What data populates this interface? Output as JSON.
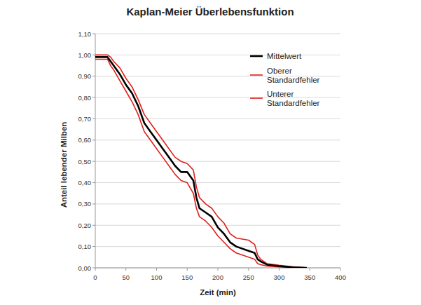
{
  "chart_data": {
    "type": "line",
    "title": "Kaplan-Meier Überlebensfunktion",
    "x_label": "Zeit (min)",
    "y_label": "Anteil lebender Milben",
    "x": [
      0,
      20,
      25,
      30,
      40,
      50,
      60,
      70,
      80,
      90,
      100,
      110,
      120,
      130,
      140,
      150,
      160,
      165,
      170,
      180,
      190,
      200,
      210,
      220,
      230,
      250,
      260,
      265,
      270,
      280,
      300,
      320,
      345
    ],
    "series": [
      {
        "name": "Mittelwert",
        "color": "#000000",
        "values": [
          0.99,
          0.99,
          0.97,
          0.95,
          0.91,
          0.86,
          0.82,
          0.76,
          0.68,
          0.64,
          0.6,
          0.56,
          0.52,
          0.48,
          0.45,
          0.45,
          0.41,
          0.33,
          0.28,
          0.26,
          0.24,
          0.19,
          0.16,
          0.12,
          0.1,
          0.08,
          0.07,
          0.04,
          0.03,
          0.015,
          0.008,
          0.003,
          0.0
        ]
      },
      {
        "name": "Oberer Standardfehler",
        "color": "#e0201b",
        "values": [
          1.0,
          1.0,
          0.99,
          0.97,
          0.94,
          0.89,
          0.85,
          0.79,
          0.72,
          0.68,
          0.64,
          0.6,
          0.56,
          0.52,
          0.5,
          0.49,
          0.46,
          0.38,
          0.33,
          0.3,
          0.28,
          0.24,
          0.21,
          0.16,
          0.14,
          0.13,
          0.11,
          0.06,
          0.04,
          0.02,
          0.012,
          0.006,
          0.0
        ]
      },
      {
        "name": "Unterer Standardfehler",
        "color": "#e0201b",
        "values": [
          0.98,
          0.98,
          0.95,
          0.93,
          0.88,
          0.83,
          0.78,
          0.72,
          0.64,
          0.6,
          0.56,
          0.52,
          0.48,
          0.44,
          0.41,
          0.4,
          0.35,
          0.28,
          0.24,
          0.22,
          0.19,
          0.15,
          0.12,
          0.09,
          0.07,
          0.05,
          0.04,
          0.02,
          0.015,
          0.008,
          0.004,
          0.001,
          0.0
        ]
      }
    ],
    "xlim": [
      0,
      400
    ],
    "xticks": [
      0,
      50,
      100,
      150,
      200,
      250,
      300,
      350,
      400
    ],
    "ylim": [
      0,
      1.1
    ],
    "yticks": [
      {
        "value": 0,
        "label": "0,00"
      },
      {
        "value": 0.1,
        "label": "0,10"
      },
      {
        "value": 0.2,
        "label": "0,20"
      },
      {
        "value": 0.3,
        "label": "0,30"
      },
      {
        "value": 0.4,
        "label": "0,40"
      },
      {
        "value": 0.5,
        "label": "0,50"
      },
      {
        "value": 0.6,
        "label": "0,60"
      },
      {
        "value": 0.7,
        "label": "0,70"
      },
      {
        "value": 0.8,
        "label": "0,80"
      },
      {
        "value": 0.9,
        "label": "0,90"
      },
      {
        "value": 1.0,
        "label": "1,00"
      },
      {
        "value": 1.1,
        "label": "1,10"
      }
    ],
    "grid": true,
    "legend": "top-right"
  }
}
